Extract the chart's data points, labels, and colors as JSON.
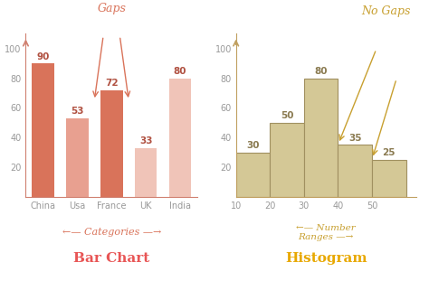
{
  "bar_categories": [
    "China",
    "Usa",
    "France",
    "UK",
    "India"
  ],
  "bar_values": [
    90,
    53,
    72,
    33,
    80
  ],
  "bar_colors": [
    "#d9735a",
    "#e8a090",
    "#d9735a",
    "#f0c4b8",
    "#f0c4b8"
  ],
  "bar_title": "Bar Chart",
  "bar_title_color": "#e85555",
  "bar_label_color": "#b05040",
  "bar_annotation_color": "#d9735a",
  "hist_values": [
    30,
    50,
    80,
    35,
    25
  ],
  "hist_bins": [
    10,
    20,
    30,
    40,
    50,
    60
  ],
  "hist_color": "#d4c896",
  "hist_edge_color": "#a09060",
  "hist_title": "Histogram",
  "hist_title_color": "#e8a800",
  "hist_label_color": "#8a7a50",
  "hist_annotation_color": "#c8a030",
  "bar_ylim": [
    0,
    110
  ],
  "bar_yticks": [
    20,
    40,
    60,
    80,
    100
  ],
  "hist_ylim": [
    0,
    110
  ],
  "hist_yticks": [
    20,
    40,
    60,
    80,
    100
  ],
  "bg_color": "#ffffff",
  "axes_color": "#d08070",
  "hist_axes_color": "#c0a060",
  "gaps_text": "Gaps",
  "no_gaps_text": "No Gaps",
  "categories_text": "Categories",
  "number_ranges_text": "Number\nRanges"
}
